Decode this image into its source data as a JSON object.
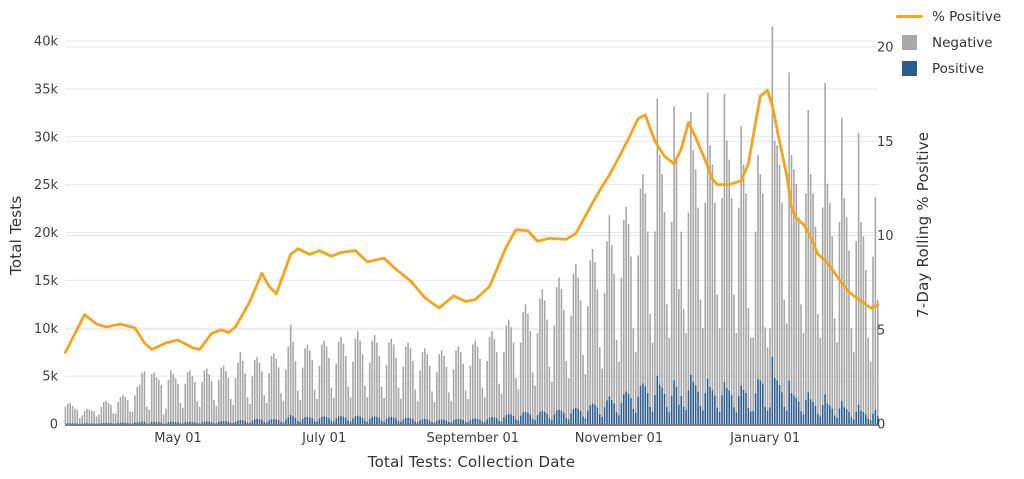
{
  "axes": {
    "left": {
      "title": "Total Tests",
      "ticks": [
        {
          "label": "0",
          "value_k": 0
        },
        {
          "label": "5k",
          "value_k": 5
        },
        {
          "label": "10k",
          "value_k": 10
        },
        {
          "label": "15k",
          "value_k": 15
        },
        {
          "label": "20k",
          "value_k": 20
        },
        {
          "label": "25k",
          "value_k": 25
        },
        {
          "label": "30k",
          "value_k": 30
        },
        {
          "label": "35k",
          "value_k": 35
        },
        {
          "label": "40k",
          "value_k": 40
        }
      ]
    },
    "right": {
      "title": "7-Day Rolling % Positive",
      "ticks": [
        {
          "label": "0",
          "value": 0
        },
        {
          "label": "5",
          "value": 5
        },
        {
          "label": "10",
          "value": 10
        },
        {
          "label": "15",
          "value": 15
        },
        {
          "label": "20",
          "value": 20
        }
      ]
    },
    "x": {
      "title": "Total Tests: Collection Date",
      "ticks": [
        {
          "label": "May 01",
          "day": 47
        },
        {
          "label": "July 01",
          "day": 108
        },
        {
          "label": "September 01",
          "day": 170
        },
        {
          "label": "November 01",
          "day": 231
        },
        {
          "label": "January 01",
          "day": 292
        }
      ]
    }
  },
  "legend": {
    "items": [
      {
        "label": "% Positive",
        "type": "line",
        "color": "#F2A51D"
      },
      {
        "label": "Negative",
        "type": "square",
        "color": "#A8A8A8"
      },
      {
        "label": "Positive",
        "type": "square",
        "color": "#2B5C8C"
      }
    ]
  },
  "colors": {
    "pct_line": "#F2A51D",
    "negative_bar": "#A8A8A8",
    "positive_bar": "#2B5C8C",
    "grid": "#E8E8E8",
    "axis_line": "#7F7F7F",
    "tick_text": "#3F3F3F"
  },
  "chart_data": {
    "type": "bar",
    "subtype": "daily stacked bars (Positive + Negative = Total Tests) with % Positive line on secondary axis",
    "title": "",
    "xlabel": "Total Tests: Collection Date",
    "ylabel_left": "Total Tests",
    "ylabel_right": "7-Day Rolling % Positive",
    "ylim_left_k": [
      0,
      41.5
    ],
    "ylim_right_pct": [
      0,
      20
    ],
    "grid": "on",
    "legend_position": "top-right",
    "start_date": "2020-03-15",
    "end_date": "2021-02-17",
    "totals_unit": "thousands of tests per day (Sun..Sat)",
    "weeks": [
      {
        "week_of": "2020-03-15",
        "totals_k": [
          1.8,
          2.1,
          2.2,
          1.9,
          1.6,
          1.5,
          0.6
        ]
      },
      {
        "week_of": "2020-03-22",
        "totals_k": [
          0.9,
          1.4,
          1.6,
          1.5,
          1.4,
          1.3,
          0.8
        ]
      },
      {
        "week_of": "2020-03-29",
        "totals_k": [
          1.0,
          1.8,
          2.3,
          2.4,
          2.2,
          2.0,
          1.1
        ]
      },
      {
        "week_of": "2020-04-05",
        "totals_k": [
          1.1,
          2.3,
          2.8,
          3.0,
          2.8,
          2.5,
          1.3
        ]
      },
      {
        "week_of": "2020-04-12",
        "totals_k": [
          1.3,
          3.0,
          3.9,
          4.1,
          5.3,
          5.5,
          1.8
        ]
      },
      {
        "week_of": "2020-04-19",
        "totals_k": [
          1.5,
          5.2,
          5.4,
          4.9,
          4.6,
          4.1,
          1.0
        ]
      },
      {
        "week_of": "2020-04-26",
        "totals_k": [
          1.6,
          4.6,
          5.6,
          5.2,
          4.8,
          4.2,
          2.2
        ]
      },
      {
        "week_of": "2020-05-03",
        "totals_k": [
          1.7,
          4.2,
          5.4,
          5.6,
          5.0,
          4.4,
          2.4
        ]
      },
      {
        "week_of": "2020-05-10",
        "totals_k": [
          1.8,
          4.4,
          5.6,
          5.8,
          5.2,
          4.5,
          2.5
        ]
      },
      {
        "week_of": "2020-05-17",
        "totals_k": [
          1.9,
          4.6,
          5.9,
          6.1,
          5.5,
          4.8,
          2.6
        ]
      },
      {
        "week_of": "2020-05-24",
        "totals_k": [
          2.0,
          4.8,
          6.4,
          7.5,
          6.6,
          5.3,
          2.8
        ]
      },
      {
        "week_of": "2020-05-31",
        "totals_k": [
          2.1,
          5.0,
          6.7,
          7.0,
          6.4,
          5.5,
          3.0
        ]
      },
      {
        "week_of": "2020-06-07",
        "totals_k": [
          2.2,
          5.3,
          7.1,
          7.4,
          6.8,
          5.9,
          3.2
        ]
      },
      {
        "week_of": "2020-06-14",
        "totals_k": [
          2.4,
          5.7,
          8.1,
          10.4,
          8.6,
          6.6,
          3.5
        ]
      },
      {
        "week_of": "2020-06-21",
        "totals_k": [
          2.5,
          5.9,
          7.9,
          8.3,
          7.7,
          6.7,
          3.6
        ]
      },
      {
        "week_of": "2020-06-28",
        "totals_k": [
          2.6,
          6.1,
          8.3,
          8.7,
          8.1,
          6.9,
          3.8
        ]
      },
      {
        "week_of": "2020-07-05",
        "totals_k": [
          2.7,
          6.3,
          8.6,
          9.1,
          8.4,
          7.1,
          3.9
        ]
      },
      {
        "week_of": "2020-07-12",
        "totals_k": [
          2.8,
          6.5,
          8.9,
          9.7,
          8.7,
          7.3,
          4.0
        ]
      },
      {
        "week_of": "2020-07-19",
        "totals_k": [
          2.8,
          6.4,
          8.7,
          9.3,
          8.5,
          7.1,
          3.9
        ]
      },
      {
        "week_of": "2020-07-26",
        "totals_k": [
          2.7,
          6.2,
          8.5,
          8.9,
          8.3,
          6.9,
          3.8
        ]
      },
      {
        "week_of": "2020-08-02",
        "totals_k": [
          2.6,
          6.0,
          8.1,
          8.5,
          7.9,
          6.6,
          3.6
        ]
      },
      {
        "week_of": "2020-08-09",
        "totals_k": [
          2.4,
          5.6,
          7.5,
          7.9,
          7.3,
          6.1,
          3.4
        ]
      },
      {
        "week_of": "2020-08-16",
        "totals_k": [
          2.3,
          5.4,
          7.3,
          7.7,
          7.1,
          6.0,
          3.3
        ]
      },
      {
        "week_of": "2020-08-23",
        "totals_k": [
          2.4,
          5.7,
          7.7,
          8.1,
          7.5,
          6.3,
          3.5
        ]
      },
      {
        "week_of": "2020-08-30",
        "totals_k": [
          2.6,
          6.1,
          8.3,
          8.7,
          8.1,
          6.8,
          3.8
        ]
      },
      {
        "week_of": "2020-09-06",
        "totals_k": [
          2.8,
          6.6,
          9.1,
          9.7,
          8.9,
          7.5,
          4.2
        ]
      },
      {
        "week_of": "2020-09-13",
        "totals_k": [
          3.2,
          7.5,
          10.3,
          10.9,
          10.1,
          8.5,
          4.8
        ]
      },
      {
        "week_of": "2020-09-20",
        "totals_k": [
          3.6,
          8.5,
          11.7,
          12.5,
          11.5,
          9.7,
          5.4
        ]
      },
      {
        "week_of": "2020-09-27",
        "totals_k": [
          4.0,
          9.5,
          13.1,
          14.1,
          12.9,
          10.9,
          6.0
        ]
      },
      {
        "week_of": "2020-10-04",
        "totals_k": [
          4.4,
          10.3,
          14.3,
          15.3,
          14.1,
          11.9,
          6.6
        ]
      },
      {
        "week_of": "2020-10-11",
        "totals_k": [
          4.8,
          11.3,
          15.7,
          16.7,
          15.3,
          12.9,
          7.2
        ]
      },
      {
        "week_of": "2020-10-18",
        "totals_k": [
          5.2,
          12.3,
          17.1,
          18.3,
          16.9,
          14.1,
          8.0
        ]
      },
      {
        "week_of": "2020-10-25",
        "totals_k": [
          5.8,
          13.7,
          19.1,
          21.8,
          18.7,
          15.7,
          8.8
        ]
      },
      {
        "week_of": "2020-11-01",
        "totals_k": [
          6.5,
          15.3,
          21.3,
          22.7,
          20.9,
          17.5,
          10.0
        ]
      },
      {
        "week_of": "2020-11-08",
        "totals_k": [
          7.5,
          17.6,
          24.6,
          26.1,
          24.1,
          20.1,
          11.5
        ]
      },
      {
        "week_of": "2020-11-15",
        "totals_k": [
          8.5,
          20.1,
          34.0,
          28.1,
          26.1,
          22.1,
          12.5
        ]
      },
      {
        "week_of": "2020-11-22",
        "totals_k": [
          9.0,
          21.1,
          33.2,
          27.6,
          14.1,
          20.1,
          12.0
        ]
      },
      {
        "week_of": "2020-11-29",
        "totals_k": [
          9.5,
          22.1,
          32.6,
          28.6,
          26.6,
          22.6,
          13.0
        ]
      },
      {
        "week_of": "2020-12-06",
        "totals_k": [
          10.0,
          23.1,
          34.6,
          29.1,
          27.1,
          23.1,
          13.5
        ]
      },
      {
        "week_of": "2020-12-13",
        "totals_k": [
          10.0,
          23.6,
          34.5,
          29.6,
          27.6,
          23.6,
          13.5
        ]
      },
      {
        "week_of": "2020-12-20",
        "totals_k": [
          9.5,
          22.6,
          31.1,
          27.1,
          24.1,
          12.1,
          9.0
        ]
      },
      {
        "week_of": "2020-12-27",
        "totals_k": [
          9.0,
          20.1,
          28.1,
          26.1,
          24.1,
          10.1,
          8.0
        ]
      },
      {
        "week_of": "2021-01-03",
        "totals_k": [
          10.0,
          41.5,
          29.6,
          29.1,
          27.1,
          23.1,
          13.0
        ]
      },
      {
        "week_of": "2021-01-10",
        "totals_k": [
          10.5,
          36.7,
          28.1,
          26.6,
          25.1,
          21.6,
          12.5
        ]
      },
      {
        "week_of": "2021-01-17",
        "totals_k": [
          9.5,
          24.1,
          32.8,
          26.1,
          24.1,
          20.6,
          11.5
        ]
      },
      {
        "week_of": "2021-01-24",
        "totals_k": [
          9.0,
          22.6,
          35.6,
          25.1,
          23.1,
          19.6,
          11.0
        ]
      },
      {
        "week_of": "2021-01-31",
        "totals_k": [
          8.5,
          21.1,
          32.0,
          23.6,
          21.6,
          18.1,
          10.0
        ]
      },
      {
        "week_of": "2021-02-07",
        "totals_k": [
          7.5,
          19.1,
          30.4,
          21.1,
          19.6,
          16.1,
          9.0
        ]
      },
      {
        "week_of": "2021-02-14",
        "totals_k": [
          6.5,
          17.5,
          23.7,
          13.0
        ]
      }
    ],
    "positive_rule": "daily positive tests ≈ total_k × pct_positive/100; negative = total − positive",
    "pct_positive_anchors": [
      [
        0,
        3.8
      ],
      [
        4,
        4.8
      ],
      [
        8,
        5.8
      ],
      [
        13,
        5.3
      ],
      [
        17,
        5.15
      ],
      [
        23,
        5.3
      ],
      [
        29,
        5.1
      ],
      [
        33,
        4.3
      ],
      [
        36,
        3.95
      ],
      [
        42,
        4.3
      ],
      [
        47,
        4.45
      ],
      [
        53,
        4.05
      ],
      [
        56,
        3.95
      ],
      [
        61,
        4.8
      ],
      [
        65,
        5.0
      ],
      [
        68,
        4.85
      ],
      [
        71,
        5.15
      ],
      [
        77,
        6.5
      ],
      [
        82,
        8.0
      ],
      [
        85,
        7.3
      ],
      [
        88,
        6.9
      ],
      [
        94,
        9.0
      ],
      [
        97,
        9.3
      ],
      [
        102,
        9.0
      ],
      [
        106,
        9.2
      ],
      [
        111,
        8.9
      ],
      [
        115,
        9.1
      ],
      [
        121,
        9.2
      ],
      [
        126,
        8.6
      ],
      [
        133,
        8.8
      ],
      [
        138,
        8.2
      ],
      [
        144,
        7.6
      ],
      [
        150,
        6.7
      ],
      [
        156,
        6.15
      ],
      [
        162,
        6.8
      ],
      [
        167,
        6.5
      ],
      [
        171,
        6.6
      ],
      [
        177,
        7.3
      ],
      [
        184,
        9.4
      ],
      [
        188,
        10.3
      ],
      [
        193,
        10.25
      ],
      [
        197,
        9.7
      ],
      [
        202,
        9.85
      ],
      [
        209,
        9.8
      ],
      [
        213,
        10.1
      ],
      [
        219,
        11.5
      ],
      [
        223,
        12.4
      ],
      [
        227,
        13.2
      ],
      [
        232,
        14.4
      ],
      [
        236,
        15.4
      ],
      [
        239,
        16.2
      ],
      [
        242,
        16.4
      ],
      [
        246,
        15.0
      ],
      [
        250,
        14.2
      ],
      [
        254,
        13.8
      ],
      [
        257,
        14.6
      ],
      [
        260,
        16.0
      ],
      [
        263,
        15.2
      ],
      [
        267,
        14.0
      ],
      [
        270,
        13.0
      ],
      [
        272,
        12.7
      ],
      [
        277,
        12.7
      ],
      [
        282,
        12.9
      ],
      [
        285,
        13.8
      ],
      [
        288,
        16.0
      ],
      [
        290,
        17.4
      ],
      [
        293,
        17.7
      ],
      [
        295,
        16.9
      ],
      [
        298,
        15.0
      ],
      [
        301,
        13.2
      ],
      [
        303,
        11.5
      ],
      [
        305,
        10.9
      ],
      [
        308,
        10.6
      ],
      [
        311,
        9.9
      ],
      [
        314,
        9.0
      ],
      [
        317,
        8.7
      ],
      [
        320,
        8.2
      ],
      [
        323,
        7.65
      ],
      [
        327,
        7.0
      ],
      [
        330,
        6.7
      ],
      [
        333,
        6.45
      ],
      [
        336,
        6.15
      ],
      [
        338,
        6.25
      ],
      [
        339,
        6.3
      ]
    ]
  }
}
